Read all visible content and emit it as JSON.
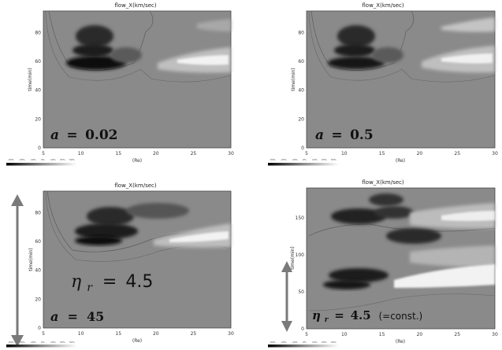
{
  "chart_data": [
    {
      "type": "heatmap",
      "title": "flow_X(km/sec)",
      "xlabel": "(Re)",
      "ylabel": "time(min)",
      "xlim": [
        5,
        30
      ],
      "ylim": [
        0,
        95
      ],
      "xticks": [
        5,
        10,
        15,
        20,
        25,
        30
      ],
      "yticks": [
        0,
        20,
        40,
        60,
        80
      ],
      "annotation": {
        "symbol": "a",
        "eq": "=",
        "value": "0.02"
      },
      "colorbar_labels": [
        "-50%",
        "-25%",
        "-10%",
        "0%",
        "10%",
        "25%",
        "50%"
      ]
    },
    {
      "type": "heatmap",
      "title": "flow_X(km/sec)",
      "xlabel": "(Re)",
      "ylabel": "time(min)",
      "xlim": [
        5,
        30
      ],
      "ylim": [
        0,
        95
      ],
      "xticks": [
        5,
        10,
        15,
        20,
        25,
        30
      ],
      "yticks": [
        0,
        20,
        40,
        60,
        80
      ],
      "annotation": {
        "symbol": "a",
        "eq": "=",
        "value": "0.5"
      },
      "colorbar_labels": [
        "-50%",
        "-25%",
        "-10%",
        "0%",
        "10%",
        "25%",
        "50%"
      ]
    },
    {
      "type": "heatmap",
      "title": "flow_X(km/sec)",
      "xlabel": "(Re)",
      "ylabel": "time(min)",
      "xlim": [
        5,
        30
      ],
      "ylim": [
        0,
        95
      ],
      "xticks": [
        5,
        10,
        15,
        20,
        25,
        30
      ],
      "yticks": [
        0,
        20,
        40,
        60,
        80
      ],
      "annotation": {
        "symbol": "a",
        "eq": "=",
        "value": "45"
      },
      "annotation_eta": {
        "symbol": "η",
        "sub": "r",
        "eq": "=",
        "value": "4.5"
      },
      "colorbar_labels": [
        "-50%",
        "-25%",
        "-10%",
        "0%",
        "10%",
        "25%",
        "50%"
      ]
    },
    {
      "type": "heatmap",
      "title": "flow_X(km/sec)",
      "xlabel": "(Re)",
      "ylabel": "time(min)",
      "xlim": [
        5,
        30
      ],
      "ylim": [
        0,
        190
      ],
      "xticks": [
        5,
        10,
        15,
        20,
        25,
        30
      ],
      "yticks": [
        0,
        50,
        100,
        150
      ],
      "annotation_eta": {
        "symbol": "η",
        "sub": "r",
        "eq": "=",
        "value": "4.5",
        "note": "(=const.)"
      },
      "colorbar_labels": [
        "-50%",
        "-25%",
        "-10%",
        "0%",
        "10%",
        "25%",
        "50%"
      ]
    }
  ],
  "colors": {
    "background_field": "#8a8a8a",
    "dark_flow": "#1a1a1a",
    "light_flow": "#f2f2f2",
    "arrow": "#7a7a7a"
  }
}
